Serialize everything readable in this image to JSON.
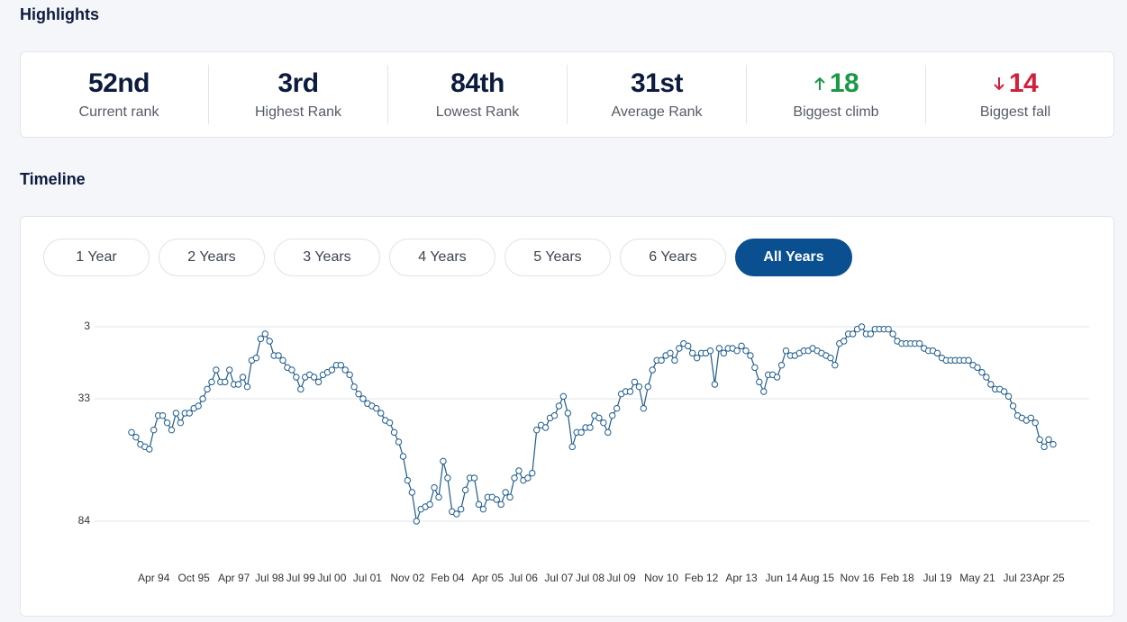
{
  "highlights": {
    "title": "Highlights",
    "stats": [
      {
        "value": "52nd",
        "label": "Current rank"
      },
      {
        "value": "3rd",
        "label": "Highest Rank"
      },
      {
        "value": "84th",
        "label": "Lowest Rank"
      },
      {
        "value": "31st",
        "label": "Average Rank"
      },
      {
        "value": 18,
        "label": "Biggest climb",
        "direction": "up"
      },
      {
        "value": 14,
        "label": "Biggest fall",
        "direction": "down"
      }
    ]
  },
  "timeline": {
    "title": "Timeline",
    "tabs": [
      "1 Year",
      "2 Years",
      "3 Years",
      "4 Years",
      "5 Years",
      "6 Years",
      "All Years"
    ],
    "active_tab": 6
  },
  "chart_data": {
    "type": "line",
    "color": "#1f5c8a",
    "grid": true,
    "y_inverted": true,
    "ylim": [
      3,
      84
    ],
    "yticks": [
      3,
      33,
      84
    ],
    "xlim": [
      0,
      207
    ],
    "xticks": [
      {
        "value": 5,
        "label": "Apr 94"
      },
      {
        "value": 14,
        "label": "Oct 95"
      },
      {
        "value": 23,
        "label": "Apr 97"
      },
      {
        "value": 31,
        "label": "Jul 98"
      },
      {
        "value": 38,
        "label": "Jul 99"
      },
      {
        "value": 45,
        "label": "Jul 00"
      },
      {
        "value": 53,
        "label": "Jul 01"
      },
      {
        "value": 62,
        "label": "Nov 02"
      },
      {
        "value": 71,
        "label": "Feb 04"
      },
      {
        "value": 80,
        "label": "Apr 05"
      },
      {
        "value": 88,
        "label": "Jul 06"
      },
      {
        "value": 96,
        "label": "Jul 07"
      },
      {
        "value": 103,
        "label": "Jul 08"
      },
      {
        "value": 110,
        "label": "Jul 09"
      },
      {
        "value": 119,
        "label": "Nov 10"
      },
      {
        "value": 128,
        "label": "Feb 12"
      },
      {
        "value": 137,
        "label": "Apr 13"
      },
      {
        "value": 146,
        "label": "Jun 14"
      },
      {
        "value": 154,
        "label": "Aug 15"
      },
      {
        "value": 163,
        "label": "Nov 16"
      },
      {
        "value": 172,
        "label": "Feb 18"
      },
      {
        "value": 181,
        "label": "Jul 19"
      },
      {
        "value": 190,
        "label": "May 21"
      },
      {
        "value": 199,
        "label": "Jul 23"
      },
      {
        "value": 206,
        "label": "Apr 25"
      }
    ],
    "values": [
      47,
      49,
      52,
      53,
      54,
      46,
      40,
      40,
      43,
      46,
      39,
      43,
      39,
      39,
      37,
      36,
      33,
      29,
      26,
      21,
      26,
      26,
      21,
      27,
      27,
      24,
      28,
      17,
      16,
      8,
      6,
      9,
      15,
      15,
      17,
      20,
      21,
      24,
      29,
      24,
      23,
      24,
      26,
      23,
      22,
      21,
      19,
      19,
      21,
      23,
      28,
      31,
      33,
      35,
      36,
      37,
      39,
      42,
      43,
      47,
      51,
      57,
      67,
      72,
      84,
      79,
      78,
      77,
      70,
      74,
      59,
      66,
      80,
      81,
      79,
      71,
      66,
      66,
      77,
      79,
      74,
      74,
      75,
      77,
      72,
      74,
      66,
      63,
      67,
      66,
      64,
      46,
      44,
      45,
      41,
      40,
      36,
      32,
      39,
      53,
      47,
      47,
      45,
      45,
      40,
      41,
      43,
      47,
      40,
      37,
      31,
      30,
      30,
      26,
      28,
      37,
      28,
      21,
      17,
      17,
      15,
      14,
      17,
      12,
      10,
      11,
      14,
      16,
      14,
      14,
      13,
      27,
      12,
      14,
      12,
      12,
      13,
      11,
      13,
      15,
      20,
      26,
      30,
      23,
      23,
      24,
      19,
      13,
      15,
      15,
      14,
      13,
      13,
      12,
      13,
      14,
      15,
      16,
      19,
      10,
      9,
      6,
      6,
      4,
      3,
      6,
      6,
      4,
      4,
      4,
      4,
      6,
      9,
      10,
      10,
      10,
      10,
      10,
      12,
      13,
      13,
      14,
      16,
      17,
      17,
      17,
      17,
      17,
      17,
      19,
      20,
      22,
      24,
      27,
      29,
      29,
      30,
      32,
      36,
      40,
      41,
      42,
      41,
      43,
      50,
      53,
      50,
      52
    ]
  }
}
